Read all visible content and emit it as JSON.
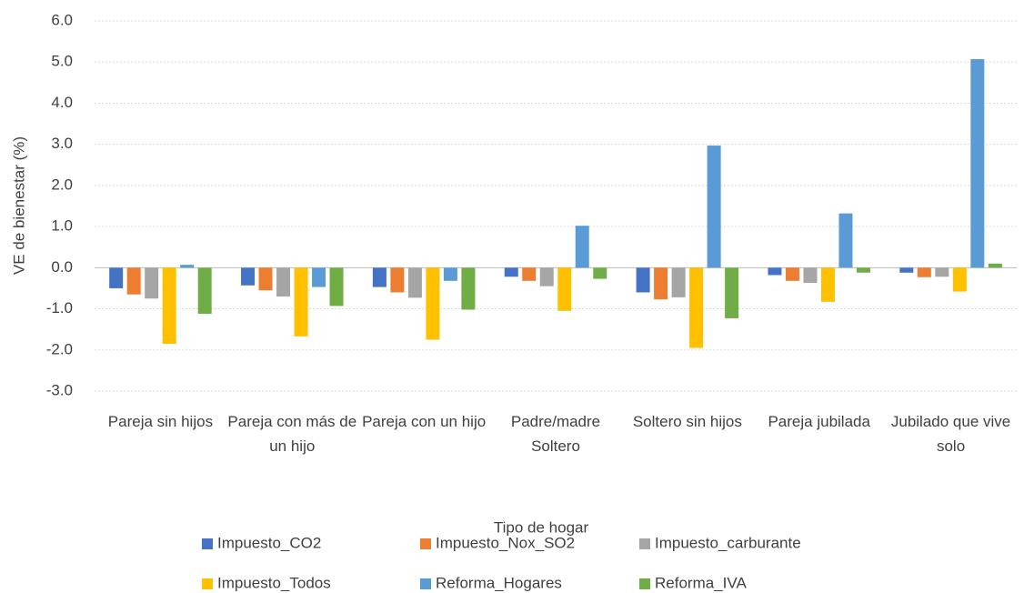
{
  "chart_data": {
    "type": "bar",
    "y_label": "VE de bienestar (%)",
    "x_label": "Tipo de hogar",
    "categories": [
      "Pareja sin hijos",
      "Pareja con más de un hijo",
      "Pareja con un hijo",
      "Padre/madre Soltero",
      "Soltero sin hijos",
      "Pareja jubilada",
      "Jubilado que vive solo"
    ],
    "series": [
      {
        "name": "Impuesto_CO2",
        "color": "#4472c4",
        "values": [
          -0.5,
          -0.43,
          -0.47,
          -0.22,
          -0.6,
          -0.18,
          -0.12
        ]
      },
      {
        "name": "Impuesto_Nox_SO2",
        "color": "#ed7d31",
        "values": [
          -0.65,
          -0.55,
          -0.6,
          -0.32,
          -0.77,
          -0.32,
          -0.23
        ]
      },
      {
        "name": "Impuesto_carburante",
        "color": "#a5a5a5",
        "values": [
          -0.75,
          -0.7,
          -0.73,
          -0.45,
          -0.72,
          -0.37,
          -0.22
        ]
      },
      {
        "name": "Impuesto_Todos",
        "color": "#ffc000",
        "values": [
          -1.85,
          -1.67,
          -1.75,
          -1.05,
          -1.95,
          -0.83,
          -0.58
        ]
      },
      {
        "name": "Reforma_Hogares",
        "color": "#5b9bd5",
        "values": [
          0.07,
          -0.47,
          -0.32,
          1.02,
          2.97,
          1.32,
          5.07
        ]
      },
      {
        "name": "Reforma_IVA",
        "color": "#70ad47",
        "values": [
          -1.12,
          -0.93,
          -1.02,
          -0.27,
          -1.23,
          -0.12,
          0.1
        ]
      }
    ],
    "ylim": [
      -3,
      6
    ],
    "yticks": [
      {
        "value": -3,
        "label": "-3.0"
      },
      {
        "value": -2,
        "label": "-2.0"
      },
      {
        "value": -1,
        "label": "-1.0"
      },
      {
        "value": 0,
        "label": "0.0"
      },
      {
        "value": 1,
        "label": "1.0"
      },
      {
        "value": 2,
        "label": "2.0"
      },
      {
        "value": 3,
        "label": "3.0"
      },
      {
        "value": 4,
        "label": "4.0"
      },
      {
        "value": 5,
        "label": "5.0"
      },
      {
        "value": 6,
        "label": "6.0"
      }
    ],
    "grid": true,
    "legend": "bottom"
  }
}
